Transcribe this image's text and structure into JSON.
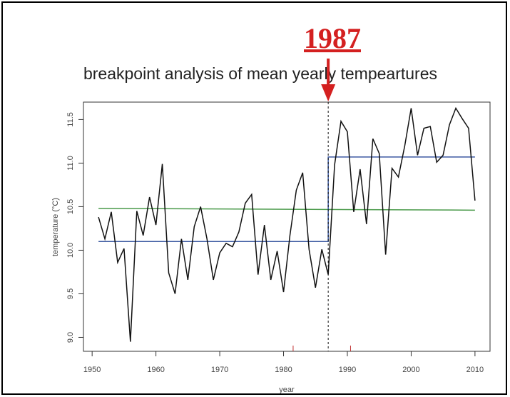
{
  "chart_data": {
    "type": "line",
    "title": "breakpoint analysis of mean yearly tempeartures",
    "annotation": "1987",
    "x_label": "year",
    "y_label": "temperature (°C)",
    "x": [
      1951,
      1952,
      1953,
      1954,
      1955,
      1956,
      1957,
      1958,
      1959,
      1960,
      1961,
      1962,
      1963,
      1964,
      1965,
      1966,
      1967,
      1968,
      1969,
      1970,
      1971,
      1972,
      1973,
      1974,
      1975,
      1976,
      1977,
      1978,
      1979,
      1980,
      1981,
      1982,
      1983,
      1984,
      1985,
      1986,
      1987,
      1988,
      1989,
      1990,
      1991,
      1992,
      1993,
      1994,
      1995,
      1996,
      1997,
      1998,
      1999,
      2000,
      2001,
      2002,
      2003,
      2004,
      2005,
      2006,
      2007,
      2008,
      2009,
      2010
    ],
    "values": [
      10.38,
      10.13,
      10.44,
      9.86,
      10.02,
      8.95,
      10.45,
      10.17,
      10.61,
      10.29,
      10.99,
      9.74,
      9.5,
      10.13,
      9.66,
      10.27,
      10.5,
      10.13,
      9.66,
      9.97,
      10.08,
      10.04,
      10.21,
      10.54,
      10.64,
      9.72,
      10.29,
      9.66,
      9.99,
      9.52,
      10.17,
      10.69,
      10.89,
      10.01,
      9.57,
      10.01,
      9.72,
      10.98,
      11.48,
      11.36,
      10.44,
      10.93,
      10.3,
      11.28,
      11.11,
      9.95,
      10.94,
      10.84,
      11.2,
      11.63,
      11.09,
      11.4,
      11.42,
      11.01,
      11.09,
      11.44,
      11.63,
      11.51,
      11.4,
      10.57
    ],
    "color": "#111111",
    "fits": [
      {
        "color": "#4a9a4a",
        "x": [
          1951,
          2010
        ],
        "values": [
          10.48,
          10.46
        ]
      },
      {
        "color": "#3a58a0",
        "x": [
          1951,
          1987,
          1987,
          2010
        ],
        "values": [
          10.1,
          10.1,
          11.07,
          11.07
        ]
      }
    ],
    "breakpoint": 1987,
    "breakpoint_interval": [
      1981.5,
      1990.5
    ],
    "xlim": [
      1948.64,
      2012.36
    ],
    "xticks": [
      1950,
      1960,
      1970,
      1980,
      1990,
      2000,
      2010
    ],
    "ylim": [
      8.84,
      11.7
    ],
    "yticks": [
      {
        "value": 9,
        "label": "9.0"
      },
      9.5,
      {
        "value": 10,
        "label": "10.0"
      },
      10.5,
      {
        "value": 11,
        "label": "11.0"
      },
      11.5
    ]
  }
}
